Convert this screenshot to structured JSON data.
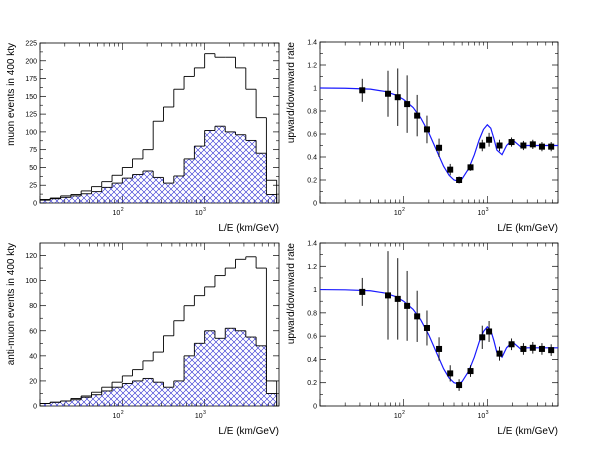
{
  "chart_data": [
    {
      "type": "histogram",
      "panel": "top-left",
      "xlabel": "L/E (km/GeV)",
      "ylabel": "muon events in 400 kty",
      "xscale": "log",
      "xlim": [
        10,
        8000
      ],
      "ylim": [
        0,
        225
      ],
      "yticks": [
        0,
        25,
        50,
        75,
        100,
        125,
        150,
        175,
        200,
        225
      ],
      "xticks": [
        {
          "base": "10",
          "exp": "2",
          "value": 100
        },
        {
          "base": "10",
          "exp": "3",
          "value": 1000
        }
      ],
      "series": [
        {
          "style": "outline",
          "edges": [
            10,
            13.3,
            17.8,
            23.7,
            31.6,
            42.2,
            56.2,
            75,
            100,
            133,
            178,
            237,
            316,
            422,
            562,
            750,
            1000,
            1334,
            1778,
            2371,
            3162,
            4217,
            5623,
            7499
          ],
          "values": [
            5,
            7,
            10,
            12,
            17,
            23,
            30,
            39,
            50,
            62,
            75,
            115,
            135,
            160,
            178,
            190,
            210,
            205,
            205,
            190,
            160,
            120,
            32
          ]
        },
        {
          "style": "hatched",
          "edges": [
            10,
            13.3,
            17.8,
            23.7,
            31.6,
            42.2,
            56.2,
            75,
            100,
            133,
            178,
            237,
            316,
            422,
            562,
            750,
            1000,
            1334,
            1778,
            2371,
            3162,
            4217,
            5623,
            7499
          ],
          "values": [
            4,
            6,
            8,
            10,
            13,
            16,
            22,
            28,
            35,
            40,
            45,
            36,
            28,
            38,
            62,
            80,
            102,
            108,
            100,
            96,
            88,
            70,
            12
          ]
        }
      ]
    },
    {
      "type": "scatter",
      "panel": "top-right",
      "xlabel": "L/E (km/GeV)",
      "ylabel": "upward/downward rate",
      "xscale": "log",
      "xlim": [
        10,
        7000
      ],
      "ylim": [
        0,
        1.4
      ],
      "yticks": [
        "0",
        "0.2",
        "0.4",
        "0.6",
        "0.8",
        "1",
        "1.2",
        "1.4"
      ],
      "xticks": [
        {
          "base": "10",
          "exp": "2",
          "value": 100
        },
        {
          "base": "10",
          "exp": "3",
          "value": 1000
        }
      ],
      "points": [
        {
          "x": 32,
          "y": 0.98,
          "err": 0.1
        },
        {
          "x": 65,
          "y": 0.95,
          "err": 0.2
        },
        {
          "x": 85,
          "y": 0.92,
          "err": 0.25
        },
        {
          "x": 110,
          "y": 0.86,
          "err": 0.25
        },
        {
          "x": 145,
          "y": 0.76,
          "err": 0.18
        },
        {
          "x": 190,
          "y": 0.64,
          "err": 0.12
        },
        {
          "x": 265,
          "y": 0.48,
          "err": 0.08
        },
        {
          "x": 360,
          "y": 0.29,
          "err": 0.05
        },
        {
          "x": 460,
          "y": 0.2,
          "err": 0.03
        },
        {
          "x": 630,
          "y": 0.31,
          "err": 0.03
        },
        {
          "x": 870,
          "y": 0.5,
          "err": 0.05
        },
        {
          "x": 1050,
          "y": 0.55,
          "err": 0.06
        },
        {
          "x": 1400,
          "y": 0.5,
          "err": 0.05
        },
        {
          "x": 1950,
          "y": 0.53,
          "err": 0.04
        },
        {
          "x": 2700,
          "y": 0.5,
          "err": 0.04
        },
        {
          "x": 3500,
          "y": 0.51,
          "err": 0.04
        },
        {
          "x": 4500,
          "y": 0.49,
          "err": 0.04
        },
        {
          "x": 5800,
          "y": 0.49,
          "err": 0.04
        }
      ],
      "curve": {
        "x": [
          10,
          20,
          40,
          60,
          80,
          100,
          130,
          160,
          200,
          250,
          300,
          350,
          400,
          450,
          500,
          600,
          700,
          800,
          900,
          1000,
          1100,
          1200,
          1300,
          1500,
          1700,
          2000,
          2500,
          3000,
          4000,
          5000,
          7000
        ],
        "y": [
          1.0,
          0.998,
          0.99,
          0.97,
          0.94,
          0.9,
          0.83,
          0.74,
          0.61,
          0.45,
          0.32,
          0.24,
          0.2,
          0.19,
          0.21,
          0.3,
          0.42,
          0.55,
          0.64,
          0.68,
          0.65,
          0.56,
          0.46,
          0.42,
          0.5,
          0.55,
          0.49,
          0.5,
          0.5,
          0.5,
          0.5
        ]
      }
    },
    {
      "type": "histogram",
      "panel": "bottom-left",
      "xlabel": "L/E (km/GeV)",
      "ylabel": "anti-muon events in 400 kty",
      "xscale": "log",
      "xlim": [
        10,
        8000
      ],
      "ylim": [
        0,
        130
      ],
      "yticks": [
        0,
        20,
        40,
        60,
        80,
        100,
        120
      ],
      "xticks": [
        {
          "base": "10",
          "exp": "2",
          "value": 100
        },
        {
          "base": "10",
          "exp": "3",
          "value": 1000
        }
      ],
      "series": [
        {
          "style": "outline",
          "edges": [
            10,
            13.3,
            17.8,
            23.7,
            31.6,
            42.2,
            56.2,
            75,
            100,
            133,
            178,
            237,
            316,
            422,
            562,
            750,
            1000,
            1334,
            1778,
            2371,
            3162,
            4217,
            5623,
            7499
          ],
          "values": [
            2,
            3,
            4,
            6,
            8,
            11,
            15,
            19,
            24,
            29,
            36,
            43,
            56,
            68,
            80,
            88,
            95,
            104,
            110,
            117,
            119,
            110,
            20
          ]
        },
        {
          "style": "hatched",
          "edges": [
            10,
            13.3,
            17.8,
            23.7,
            31.6,
            42.2,
            56.2,
            75,
            100,
            133,
            178,
            237,
            316,
            422,
            562,
            750,
            1000,
            1334,
            1778,
            2371,
            3162,
            4217,
            5623,
            7499
          ],
          "values": [
            2,
            3,
            4,
            5,
            7,
            9,
            12,
            15,
            18,
            20,
            22,
            19,
            15,
            20,
            40,
            50,
            60,
            54,
            62,
            60,
            55,
            48,
            10
          ]
        }
      ]
    },
    {
      "type": "scatter",
      "panel": "bottom-right",
      "xlabel": "L/E (km/GeV)",
      "ylabel": "upward/downward rate",
      "xscale": "log",
      "xlim": [
        10,
        7000
      ],
      "ylim": [
        0,
        1.4
      ],
      "yticks": [
        "0",
        "0.2",
        "0.4",
        "0.6",
        "0.8",
        "1",
        "1.2",
        "1.4"
      ],
      "xticks": [
        {
          "base": "10",
          "exp": "2",
          "value": 100
        },
        {
          "base": "10",
          "exp": "3",
          "value": 1000
        }
      ],
      "points": [
        {
          "x": 32,
          "y": 0.98,
          "err": 0.12
        },
        {
          "x": 65,
          "y": 0.95,
          "err": 0.38
        },
        {
          "x": 85,
          "y": 0.92,
          "err": 0.35
        },
        {
          "x": 110,
          "y": 0.86,
          "err": 0.3
        },
        {
          "x": 145,
          "y": 0.77,
          "err": 0.22
        },
        {
          "x": 190,
          "y": 0.67,
          "err": 0.15
        },
        {
          "x": 265,
          "y": 0.49,
          "err": 0.1
        },
        {
          "x": 360,
          "y": 0.28,
          "err": 0.07
        },
        {
          "x": 460,
          "y": 0.18,
          "err": 0.05
        },
        {
          "x": 630,
          "y": 0.3,
          "err": 0.05
        },
        {
          "x": 870,
          "y": 0.59,
          "err": 0.1
        },
        {
          "x": 1050,
          "y": 0.64,
          "err": 0.09
        },
        {
          "x": 1400,
          "y": 0.45,
          "err": 0.06
        },
        {
          "x": 1950,
          "y": 0.53,
          "err": 0.05
        },
        {
          "x": 2700,
          "y": 0.49,
          "err": 0.05
        },
        {
          "x": 3500,
          "y": 0.5,
          "err": 0.05
        },
        {
          "x": 4500,
          "y": 0.49,
          "err": 0.05
        },
        {
          "x": 5800,
          "y": 0.48,
          "err": 0.05
        }
      ],
      "curve": {
        "x": [
          10,
          20,
          40,
          60,
          80,
          100,
          130,
          160,
          200,
          250,
          300,
          350,
          400,
          450,
          500,
          600,
          700,
          800,
          900,
          1000,
          1100,
          1200,
          1300,
          1500,
          1700,
          2000,
          2500,
          3000,
          4000,
          5000,
          7000
        ],
        "y": [
          1.0,
          0.998,
          0.99,
          0.97,
          0.94,
          0.9,
          0.83,
          0.74,
          0.61,
          0.45,
          0.32,
          0.24,
          0.2,
          0.19,
          0.21,
          0.3,
          0.42,
          0.55,
          0.64,
          0.68,
          0.65,
          0.56,
          0.46,
          0.42,
          0.5,
          0.55,
          0.49,
          0.5,
          0.5,
          0.5,
          0.5
        ]
      }
    }
  ],
  "colors": {
    "hatch": "#2b2bd0",
    "curve": "#1a1aff",
    "marker": "#000000",
    "axis": "#000000"
  }
}
